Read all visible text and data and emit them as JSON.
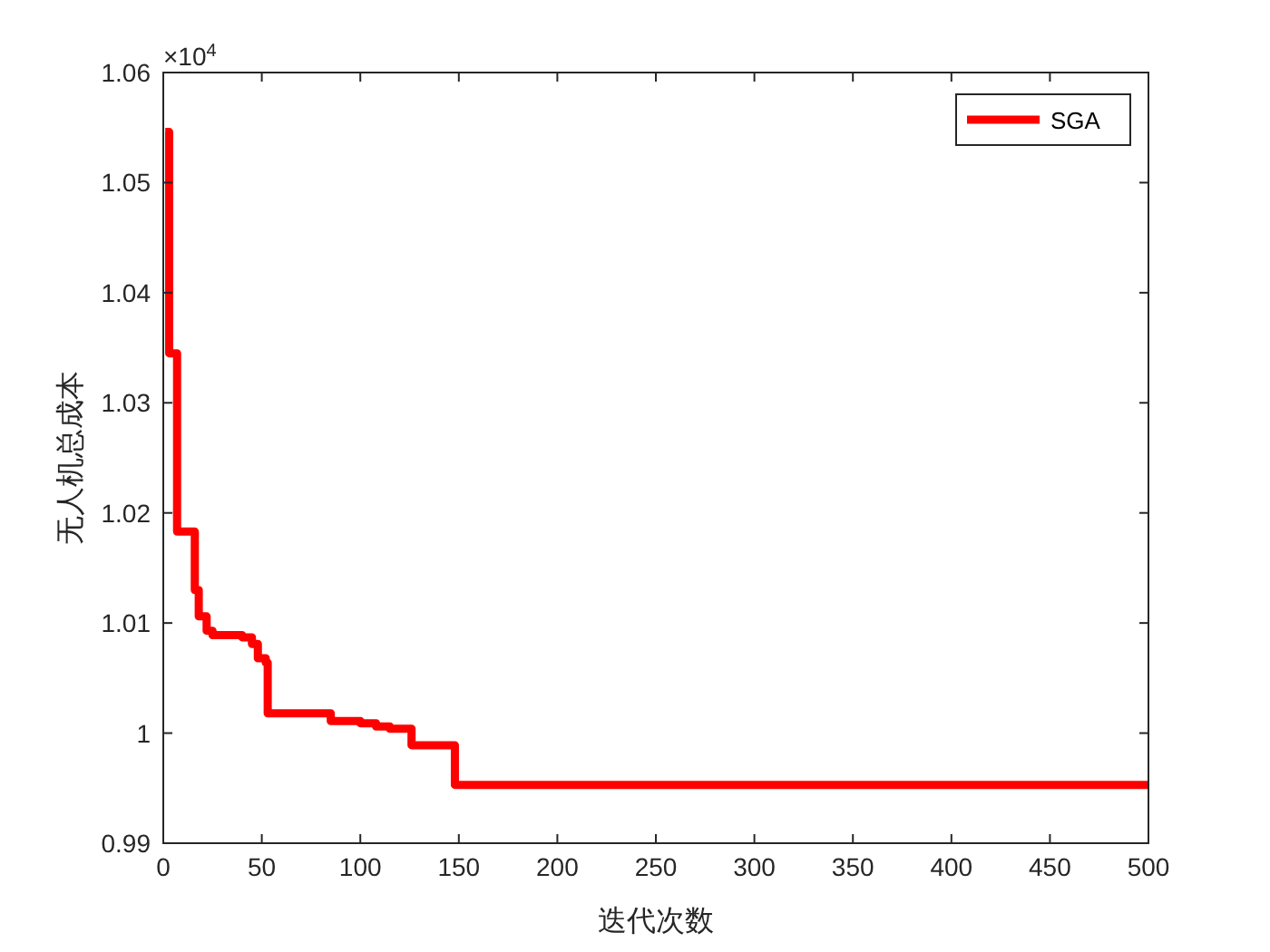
{
  "chart_data": {
    "type": "step",
    "xlabel": "迭代次数",
    "ylabel": "无人机总成本",
    "annotations": [
      "×10$^{4}$"
    ],
    "xlim": [
      0,
      500
    ],
    "xticks": [
      0,
      50,
      100,
      150,
      200,
      250,
      300,
      350,
      400,
      450,
      500
    ],
    "ylim": [
      0.99,
      1.06
    ],
    "yticks": [
      0.99,
      1,
      1.01,
      1.02,
      1.03,
      1.04,
      1.05,
      1.06
    ],
    "legend": "top right",
    "grid": false,
    "series": [
      {
        "name": "SGA",
        "color": "#ff0000",
        "x": [
          1,
          3,
          7,
          10,
          16,
          18,
          22,
          25,
          38,
          40,
          45,
          48,
          52,
          53,
          83,
          85,
          95,
          100,
          108,
          115,
          125,
          126,
          143,
          148,
          500
        ],
        "values": [
          1.0546,
          1.0345,
          1.0183,
          1.0183,
          1.013,
          1.0106,
          1.0093,
          1.0089,
          1.0089,
          1.0087,
          1.0081,
          1.0068,
          1.0064,
          1.0018,
          1.0018,
          1.0011,
          1.0011,
          1.0009,
          1.0006,
          1.0004,
          1.0004,
          0.9989,
          0.9989,
          0.9953,
          0.9953
        ]
      }
    ]
  }
}
